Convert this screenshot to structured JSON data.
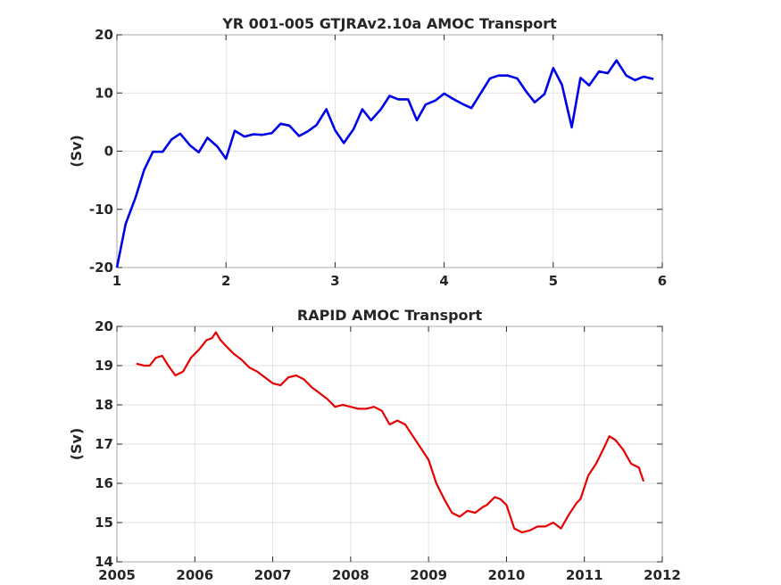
{
  "chart_data": [
    {
      "type": "line",
      "title": "YR 001-005 GTJRAv2.10a AMOC Transport",
      "xlabel": "",
      "ylabel": "(Sv)",
      "xlim": [
        1,
        6
      ],
      "ylim": [
        -20,
        20
      ],
      "xticks": [
        1,
        2,
        3,
        4,
        5,
        6
      ],
      "yticks": [
        -20,
        -10,
        0,
        10,
        20
      ],
      "grid": true,
      "color": "#0000e6",
      "x": [
        1.0,
        1.08,
        1.17,
        1.25,
        1.33,
        1.42,
        1.5,
        1.58,
        1.67,
        1.75,
        1.83,
        1.92,
        2.0,
        2.08,
        2.17,
        2.25,
        2.33,
        2.42,
        2.5,
        2.58,
        2.67,
        2.75,
        2.83,
        2.92,
        3.0,
        3.08,
        3.17,
        3.25,
        3.33,
        3.42,
        3.5,
        3.58,
        3.67,
        3.75,
        3.83,
        3.92,
        4.0,
        4.08,
        4.17,
        4.25,
        4.33,
        4.42,
        4.5,
        4.58,
        4.67,
        4.75,
        4.83,
        4.92,
        5.0,
        5.08,
        5.17,
        5.25,
        5.33,
        5.42,
        5.5,
        5.58,
        5.67,
        5.75,
        5.83,
        5.92
      ],
      "values": [
        -20.0,
        -12.5,
        -8.0,
        -3.2,
        -0.1,
        -0.1,
        2.0,
        3.0,
        1.0,
        -0.2,
        2.3,
        0.8,
        -1.3,
        3.5,
        2.5,
        2.9,
        2.8,
        3.1,
        4.7,
        4.4,
        2.6,
        3.4,
        4.5,
        7.2,
        3.6,
        1.4,
        3.8,
        7.2,
        5.3,
        7.2,
        9.5,
        8.9,
        8.9,
        5.3,
        8.0,
        8.7,
        9.9,
        9.0,
        8.1,
        7.4,
        9.8,
        12.5,
        13.0,
        13.0,
        12.5,
        10.3,
        8.4,
        9.8,
        14.3,
        11.4,
        4.1,
        12.6,
        11.3,
        13.7,
        13.4,
        15.6,
        13.0,
        12.2,
        12.8,
        12.4
      ]
    },
    {
      "type": "line",
      "title": "RAPID AMOC Transport",
      "xlabel": "",
      "ylabel": "(Sv)",
      "xlim": [
        2005,
        2012
      ],
      "ylim": [
        14,
        20
      ],
      "xticks": [
        2005,
        2006,
        2007,
        2008,
        2009,
        2010,
        2011,
        2012
      ],
      "yticks": [
        14,
        15,
        16,
        17,
        18,
        19,
        20
      ],
      "grid": true,
      "color": "#e60000",
      "x": [
        2005.25,
        2005.35,
        2005.42,
        2005.5,
        2005.58,
        2005.66,
        2005.75,
        2005.85,
        2005.95,
        2006.05,
        2006.15,
        2006.22,
        2006.27,
        2006.33,
        2006.4,
        2006.5,
        2006.6,
        2006.7,
        2006.8,
        2006.9,
        2007.0,
        2007.1,
        2007.2,
        2007.3,
        2007.4,
        2007.5,
        2007.6,
        2007.7,
        2007.8,
        2007.9,
        2008.0,
        2008.1,
        2008.2,
        2008.3,
        2008.4,
        2008.5,
        2008.6,
        2008.7,
        2008.8,
        2008.9,
        2009.0,
        2009.1,
        2009.2,
        2009.3,
        2009.4,
        2009.5,
        2009.6,
        2009.7,
        2009.75,
        2009.85,
        2009.92,
        2010.0,
        2010.1,
        2010.2,
        2010.3,
        2010.4,
        2010.5,
        2010.6,
        2010.7,
        2010.8,
        2010.9,
        2010.95,
        2011.05,
        2011.15,
        2011.25,
        2011.32,
        2011.4,
        2011.5,
        2011.6,
        2011.7,
        2011.76
      ],
      "values": [
        19.05,
        19.0,
        19.0,
        19.2,
        19.25,
        19.0,
        18.75,
        18.85,
        19.2,
        19.4,
        19.65,
        19.7,
        19.85,
        19.65,
        19.5,
        19.3,
        19.15,
        18.95,
        18.85,
        18.7,
        18.55,
        18.5,
        18.7,
        18.75,
        18.65,
        18.45,
        18.3,
        18.15,
        17.95,
        18.0,
        17.95,
        17.9,
        17.9,
        17.95,
        17.85,
        17.5,
        17.6,
        17.5,
        17.2,
        16.9,
        16.6,
        16.0,
        15.6,
        15.25,
        15.15,
        15.3,
        15.25,
        15.4,
        15.45,
        15.65,
        15.6,
        15.45,
        14.85,
        14.75,
        14.8,
        14.9,
        14.9,
        15.0,
        14.85,
        15.2,
        15.5,
        15.6,
        16.2,
        16.5,
        16.9,
        17.2,
        17.1,
        16.85,
        16.5,
        16.4,
        16.05
      ]
    }
  ]
}
